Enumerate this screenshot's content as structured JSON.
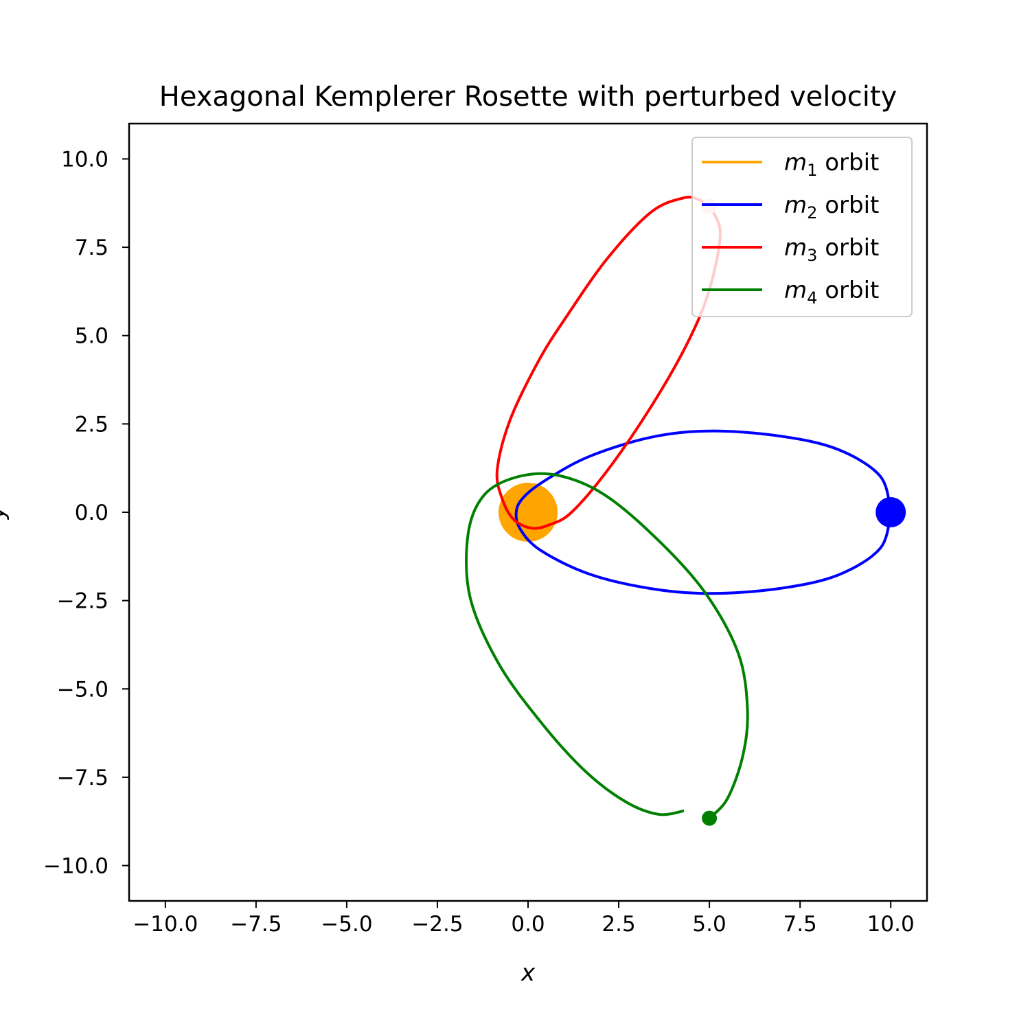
{
  "chart_data": {
    "type": "line",
    "title": "Hexagonal Kemplerer Rosette with perturbed velocity",
    "xlabel": "x",
    "ylabel": "y",
    "xlim": [
      -11,
      11
    ],
    "ylim": [
      -11,
      11
    ],
    "xticks": [
      -10,
      -7.5,
      -5,
      -2.5,
      0,
      2.5,
      5,
      7.5,
      10
    ],
    "yticks": [
      -10,
      -7.5,
      -5,
      -2.5,
      0,
      2.5,
      5,
      7.5,
      10
    ],
    "xtick_labels": [
      "−10.0",
      "−7.5",
      "−5.0",
      "−2.5",
      "0.0",
      "2.5",
      "5.0",
      "7.5",
      "10.0"
    ],
    "ytick_labels": [
      "−10.0",
      "−7.5",
      "−5.0",
      "−2.5",
      "0.0",
      "2.5",
      "5.0",
      "7.5",
      "10.0"
    ],
    "grid": false,
    "legend_position": "top-right",
    "series": [
      {
        "name": "m1 orbit",
        "legend_math": "m",
        "legend_sub": "1",
        "legend_suffix": " orbit",
        "color": "#FFA500",
        "points": [
          [
            0,
            0
          ]
        ],
        "body": [
          0,
          0
        ],
        "body_style": "large"
      },
      {
        "name": "m2 orbit",
        "legend_math": "m",
        "legend_sub": "2",
        "legend_suffix": " orbit",
        "color": "#0000FF",
        "points": [
          [
            10,
            0
          ],
          [
            9.71,
            1.02
          ],
          [
            8.54,
            1.78
          ],
          [
            6.92,
            2.16
          ],
          [
            5.0,
            2.3
          ],
          [
            3.38,
            2.12
          ],
          [
            1.69,
            1.58
          ],
          [
            0.52,
            0.93
          ],
          [
            -0.08,
            0.47
          ],
          [
            -0.32,
            0.05
          ],
          [
            -0.22,
            -0.47
          ],
          [
            0.35,
            -1.08
          ],
          [
            1.69,
            -1.75
          ],
          [
            3.38,
            -2.16
          ],
          [
            5.0,
            -2.3
          ],
          [
            6.92,
            -2.16
          ],
          [
            8.54,
            -1.78
          ],
          [
            9.71,
            -1.02
          ],
          [
            10,
            0
          ]
        ],
        "body": [
          10,
          0
        ],
        "body_style": "medium"
      },
      {
        "name": "m3 orbit",
        "legend_math": "m",
        "legend_sub": "3",
        "legend_suffix": " orbit",
        "color": "#FF0000",
        "points": [
          [
            5.0,
            8.66
          ],
          [
            5.3,
            7.9
          ],
          [
            5.0,
            6.3
          ],
          [
            4.4,
            4.8
          ],
          [
            3.4,
            3.0
          ],
          [
            2.2,
            1.2
          ],
          [
            1.2,
            0.0
          ],
          [
            0.6,
            -0.35
          ],
          [
            0.1,
            -0.45
          ],
          [
            -0.4,
            -0.2
          ],
          [
            -0.72,
            0.4
          ],
          [
            -0.85,
            1.2
          ],
          [
            -0.5,
            2.6
          ],
          [
            0.3,
            4.3
          ],
          [
            1.1,
            5.6
          ],
          [
            2.2,
            7.2
          ],
          [
            3.4,
            8.5
          ],
          [
            4.3,
            8.9
          ],
          [
            4.7,
            8.85
          ],
          [
            5.0,
            8.66
          ]
        ],
        "body": [
          5.0,
          8.66
        ],
        "body_style": "small",
        "body_color": "#FFC8C8"
      },
      {
        "name": "m4 orbit",
        "legend_math": "m",
        "legend_sub": "4",
        "legend_suffix": " orbit",
        "color": "#008000",
        "points": [
          [
            5.0,
            -8.66
          ],
          [
            5.5,
            -8.1
          ],
          [
            5.92,
            -6.9
          ],
          [
            6.05,
            -5.6
          ],
          [
            5.8,
            -4.0
          ],
          [
            4.9,
            -2.3
          ],
          [
            3.6,
            -0.8
          ],
          [
            2.1,
            0.5
          ],
          [
            0.8,
            1.05
          ],
          [
            -0.3,
            1.0
          ],
          [
            -1.2,
            0.5
          ],
          [
            -1.65,
            -0.6
          ],
          [
            -1.6,
            -2.4
          ],
          [
            -0.8,
            -4.3
          ],
          [
            0.4,
            -6.0
          ],
          [
            1.6,
            -7.35
          ],
          [
            2.7,
            -8.2
          ],
          [
            3.6,
            -8.55
          ],
          [
            4.3,
            -8.45
          ]
        ],
        "body": [
          5.0,
          -8.66
        ],
        "body_style": "small"
      }
    ]
  }
}
